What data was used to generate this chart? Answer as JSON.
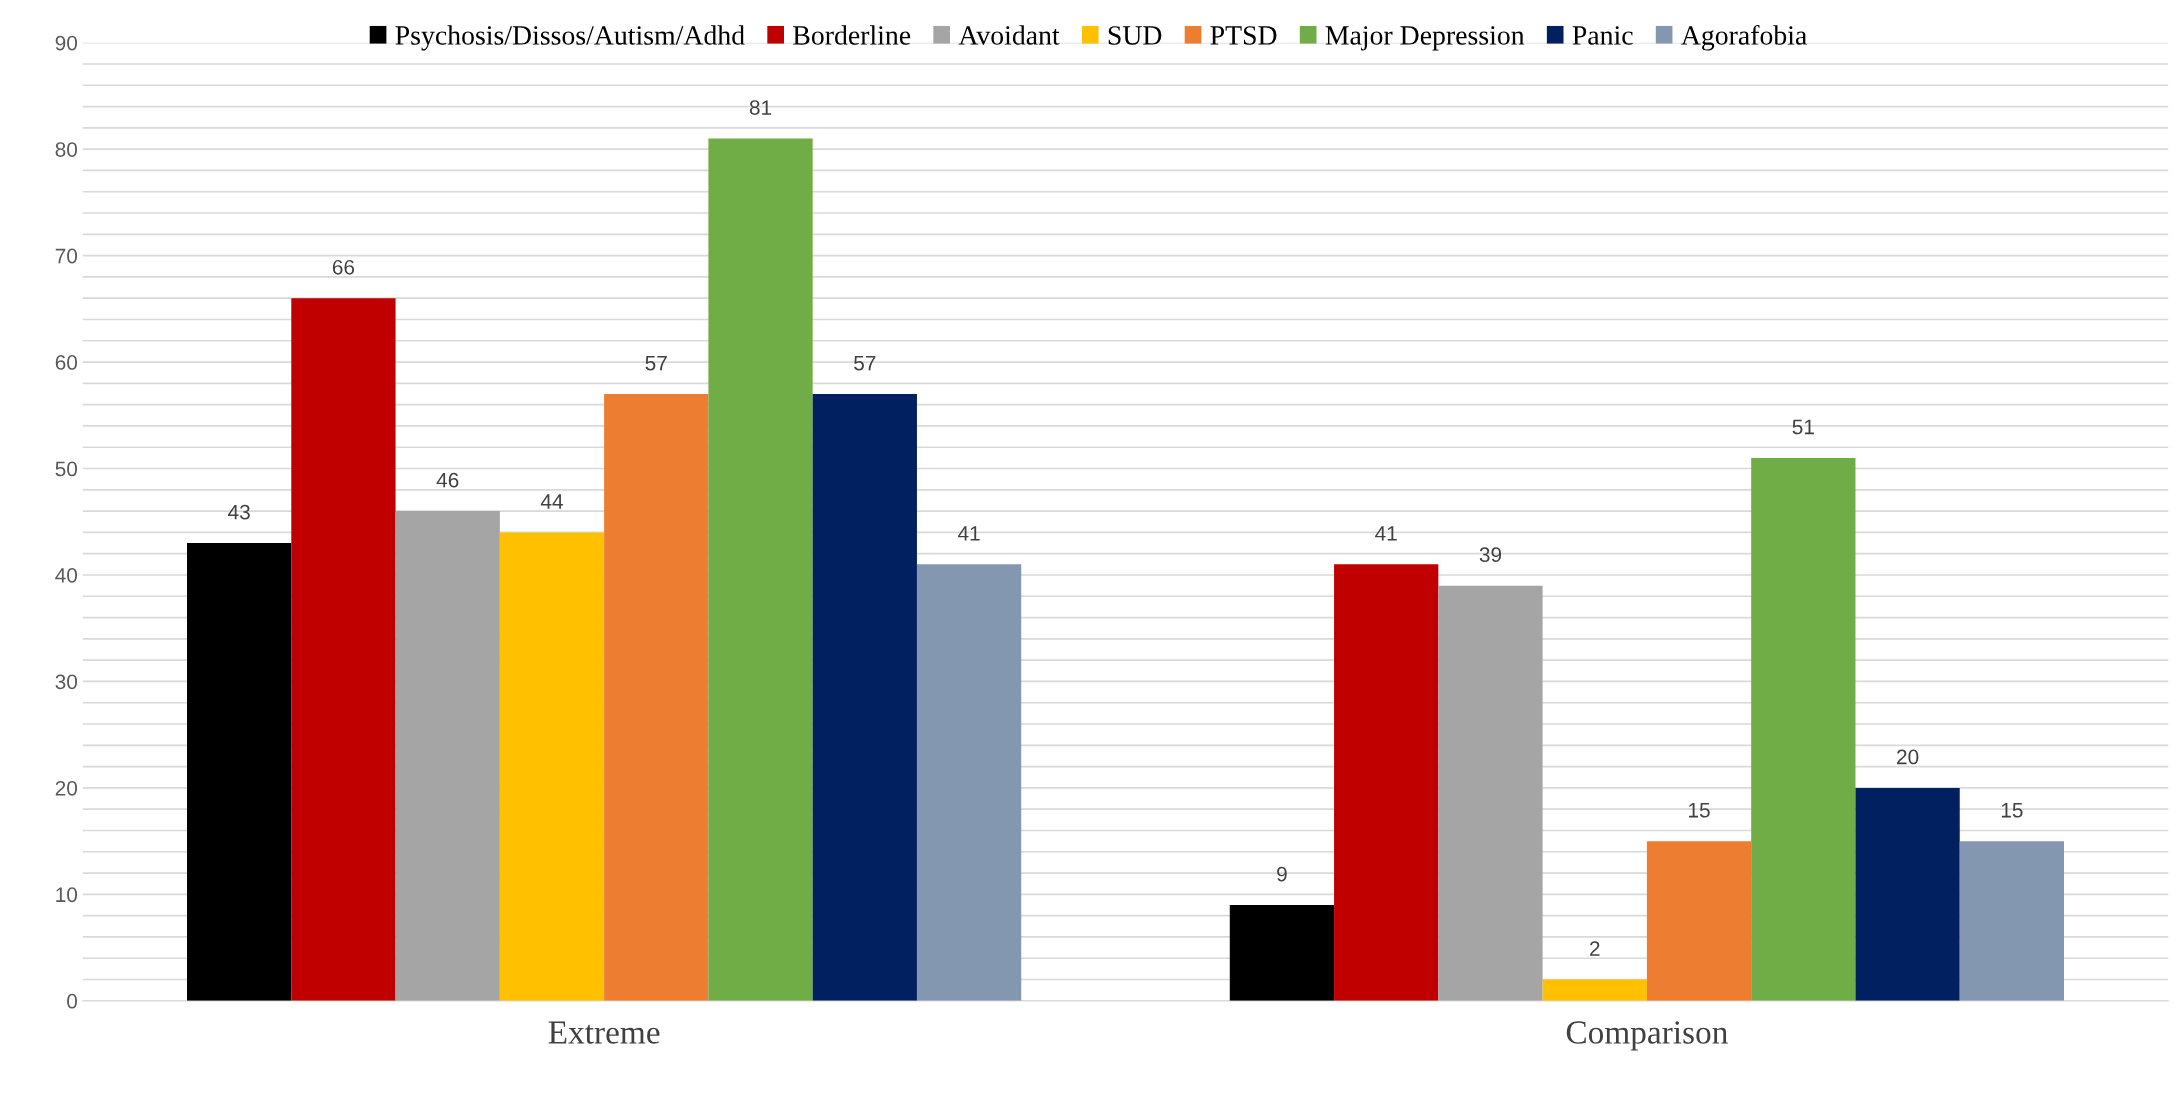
{
  "chart_data": {
    "type": "bar",
    "categories": [
      "Extreme",
      "Comparison"
    ],
    "series": [
      {
        "name": "Psychosis/Dissos/Autism/Adhd",
        "color": "#000000",
        "values": [
          43,
          9
        ]
      },
      {
        "name": "Borderline",
        "color": "#c00000",
        "values": [
          66,
          41
        ]
      },
      {
        "name": "Avoidant",
        "color": "#a5a5a5",
        "values": [
          46,
          39
        ]
      },
      {
        "name": "SUD",
        "color": "#ffc000",
        "values": [
          44,
          2
        ]
      },
      {
        "name": "PTSD",
        "color": "#ed7d31",
        "values": [
          57,
          15
        ]
      },
      {
        "name": "Major Depression",
        "color": "#70ad47",
        "values": [
          81,
          51
        ]
      },
      {
        "name": "Panic",
        "color": "#002060",
        "values": [
          57,
          20
        ]
      },
      {
        "name": "Agorafobia",
        "color": "#8497b0",
        "values": [
          41,
          15
        ]
      }
    ],
    "ylim": [
      0,
      90
    ],
    "yticks": [
      0,
      {
        "value": 2,
        "label": null
      },
      {
        "value": 4,
        "label": null
      },
      {
        "value": 6,
        "label": null
      },
      {
        "value": 8,
        "label": null
      },
      10,
      {
        "value": 12,
        "label": null
      },
      {
        "value": 14,
        "label": null
      },
      {
        "value": 16,
        "label": null
      },
      {
        "value": 18,
        "label": null
      },
      20,
      {
        "value": 22,
        "label": null
      },
      {
        "value": 24,
        "label": null
      },
      {
        "value": 26,
        "label": null
      },
      {
        "value": 28,
        "label": null
      },
      30,
      {
        "value": 32,
        "label": null
      },
      {
        "value": 34,
        "label": null
      },
      {
        "value": 36,
        "label": null
      },
      {
        "value": 38,
        "label": null
      },
      40,
      {
        "value": 42,
        "label": null
      },
      {
        "value": 44,
        "label": null
      },
      {
        "value": 46,
        "label": null
      },
      {
        "value": 48,
        "label": null
      },
      50,
      {
        "value": 52,
        "label": null
      },
      {
        "value": 54,
        "label": null
      },
      {
        "value": 56,
        "label": null
      },
      {
        "value": 58,
        "label": null
      },
      60,
      {
        "value": 62,
        "label": null
      },
      {
        "value": 64,
        "label": null
      },
      {
        "value": 66,
        "label": null
      },
      {
        "value": 68,
        "label": null
      },
      70,
      {
        "value": 72,
        "label": null
      },
      {
        "value": 74,
        "label": null
      },
      {
        "value": 76,
        "label": null
      },
      {
        "value": 78,
        "label": null
      },
      80,
      {
        "value": 82,
        "label": null
      },
      {
        "value": 84,
        "label": null
      },
      {
        "value": 86,
        "label": null
      },
      {
        "value": 88,
        "label": null
      },
      90
    ],
    "grid": "y",
    "legend": "top",
    "data_labels": true
  }
}
